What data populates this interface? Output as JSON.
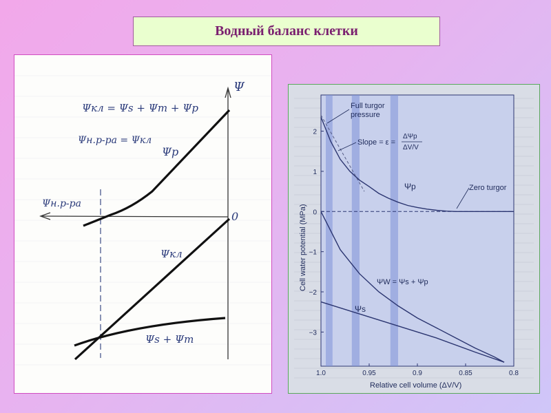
{
  "slide_title": "Водный баланс клетки",
  "hand_plot": {
    "axis_y_label": "Ψ",
    "origin_label": "0",
    "x_axis_label": "Ψн.р-ра",
    "eq_top": "Ψкл = Ψs + Ψm + Ψp",
    "eq_second": "Ψн.р-ра = Ψкл",
    "curve_p_label": "Ψp",
    "curve_cell_label": "Ψкл",
    "curve_sm_label": "Ψs + Ψm"
  },
  "chart_data": {
    "type": "line",
    "xlabel": "Relative cell volume (ΔV/V)",
    "ylabel": "Cell water potential (MPa)",
    "x_ticks": [
      "1.0",
      "0.95",
      "0.9",
      "0.85",
      "0.8"
    ],
    "y_ticks": [
      "2",
      "1",
      "0",
      "−1",
      "−2",
      "−3"
    ],
    "xlim": [
      1.0,
      0.8
    ],
    "ylim": [
      -3.85,
      2.9
    ],
    "x_direction": "reversed",
    "annotations": {
      "full_turgor": [
        "Full turgor",
        "pressure"
      ],
      "slope_prefix": "Slope = ε =",
      "slope_num": "ΔΨp",
      "slope_den": "ΔV/V",
      "zero_turgor": "Zero turgor",
      "psi_p": "Ψp",
      "psi_w": "ΨW = Ψs + Ψp",
      "psi_s": "Ψs"
    },
    "series": [
      {
        "name": "Ψp",
        "x": [
          1.0,
          0.99,
          0.98,
          0.97,
          0.96,
          0.95,
          0.94,
          0.93,
          0.92,
          0.91,
          0.9,
          0.89,
          0.88,
          0.87,
          0.86,
          0.85,
          0.84,
          0.83,
          0.82,
          0.81,
          0.8
        ],
        "y": [
          2.35,
          1.75,
          1.3,
          1.0,
          0.78,
          0.62,
          0.45,
          0.33,
          0.23,
          0.15,
          0.1,
          0.06,
          0.03,
          0.01,
          0.0,
          0.0,
          0.0,
          0.0,
          0.0,
          0.0,
          0.0
        ]
      },
      {
        "name": "ΨW",
        "x": [
          1.0,
          0.98,
          0.96,
          0.94,
          0.92,
          0.9,
          0.88,
          0.86,
          0.84,
          0.82,
          0.81
        ],
        "y": [
          0.0,
          -0.95,
          -1.55,
          -2.0,
          -2.35,
          -2.65,
          -2.9,
          -3.15,
          -3.4,
          -3.62,
          -3.75
        ]
      },
      {
        "name": "Ψs",
        "x": [
          1.0,
          0.96,
          0.92,
          0.88,
          0.84,
          0.81
        ],
        "y": [
          -2.25,
          -2.55,
          -2.85,
          -3.15,
          -3.5,
          -3.75
        ]
      }
    ],
    "bands": [
      [
        0.995,
        0.988
      ],
      [
        0.968,
        0.96
      ],
      [
        0.928,
        0.92
      ]
    ]
  }
}
